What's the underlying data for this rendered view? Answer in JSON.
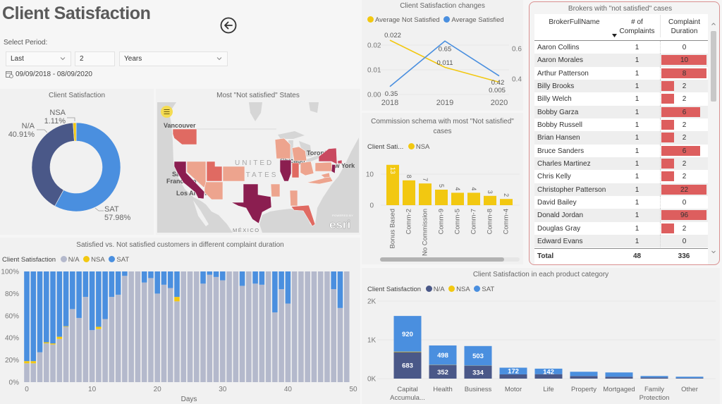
{
  "header": {
    "title": "Client Satisfaction"
  },
  "period": {
    "label": "Select Period:",
    "relative": "Last",
    "count": "2",
    "unit": "Years",
    "date_range": "09/09/2018 - 08/09/2020"
  },
  "colors": {
    "sat": "#4a8fdf",
    "na": "#4a5888",
    "na_light": "#b4b9cc",
    "nsa": "#f2c811",
    "table_bar": "#dd5e5e",
    "map_levels": {
      "high": "#8b1e50",
      "medium_high": "#c94a60",
      "medium": "#e06a62",
      "low": "#eda48e"
    }
  },
  "map": {
    "title": "Most \"Not satisfied\" States",
    "places": {
      "vancouver": "Vancouver",
      "united": "UNITED",
      "states": "STATES",
      "toronto": "Toronto",
      "chicago": "Chicago",
      "new_york": "New York",
      "san": "San",
      "francisco": "Francisco",
      "los_angeles": "Los Angeles",
      "mexico": "MÉXICO"
    },
    "states": [
      {
        "name": "California",
        "level": "high"
      },
      {
        "name": "Texas",
        "level": "high"
      },
      {
        "name": "Illinois",
        "level": "high"
      },
      {
        "name": "New Jersey",
        "level": "high"
      },
      {
        "name": "New York",
        "level": "medium_high"
      },
      {
        "name": "Connecticut",
        "level": "medium_high"
      },
      {
        "name": "Washington",
        "level": "medium"
      },
      {
        "name": "Utah",
        "level": "medium"
      },
      {
        "name": "Indiana",
        "level": "medium"
      },
      {
        "name": "Florida",
        "level": "medium"
      },
      {
        "name": "Nevada",
        "level": "low"
      },
      {
        "name": "Colorado",
        "level": "low"
      },
      {
        "name": "Arizona",
        "level": "low"
      },
      {
        "name": "Arkansas",
        "level": "low"
      },
      {
        "name": "Alabama",
        "level": "low"
      },
      {
        "name": "Wisconsin",
        "level": "low"
      },
      {
        "name": "Michigan",
        "level": "low"
      },
      {
        "name": "Ohio",
        "level": "low"
      },
      {
        "name": "Pennsylvania",
        "level": "low"
      },
      {
        "name": "Virginia",
        "level": "low"
      },
      {
        "name": "Maryland",
        "level": "low"
      }
    ],
    "attribution_small": "POWERED BY",
    "attribution": "esri"
  },
  "table": {
    "title": "Brokers with \"not satisfied\" cases",
    "columns": [
      {
        "lines": [
          "BrokerFullName"
        ]
      },
      {
        "lines": [
          "# of",
          "Complaints"
        ],
        "sort": "descending"
      },
      {
        "lines": [
          "Complaint",
          "Duration"
        ]
      }
    ],
    "rows": [
      {
        "name": "Aaron Collins",
        "complaints": 1,
        "duration": 0
      },
      {
        "name": "Aaron Morales",
        "complaints": 1,
        "duration": 10
      },
      {
        "name": "Arthur Patterson",
        "complaints": 1,
        "duration": 8
      },
      {
        "name": "Billy Brooks",
        "complaints": 1,
        "duration": 2
      },
      {
        "name": "Billy Welch",
        "complaints": 1,
        "duration": 2
      },
      {
        "name": "Bobby Garza",
        "complaints": 1,
        "duration": 6
      },
      {
        "name": "Bobby Russell",
        "complaints": 1,
        "duration": 2
      },
      {
        "name": "Brian Hansen",
        "complaints": 1,
        "duration": 2
      },
      {
        "name": "Bruce Sanders",
        "complaints": 1,
        "duration": 6
      },
      {
        "name": "Charles Martinez",
        "complaints": 1,
        "duration": 2
      },
      {
        "name": "Chris Kelly",
        "complaints": 1,
        "duration": 2
      },
      {
        "name": "Christopher Patterson",
        "complaints": 1,
        "duration": 22
      },
      {
        "name": "David Bailey",
        "complaints": 1,
        "duration": 0
      },
      {
        "name": "Donald Jordan",
        "complaints": 1,
        "duration": 96
      },
      {
        "name": "Douglas Gray",
        "complaints": 1,
        "duration": 2
      },
      {
        "name": "Edward Evans",
        "complaints": 1,
        "duration": 0
      }
    ],
    "total": {
      "label": "Total",
      "complaints": "48",
      "duration": "336"
    }
  },
  "chart_data": [
    {
      "id": "client_satisfaction_donut",
      "type": "pie",
      "title": "Client Satisfaction",
      "slices": [
        {
          "label": "SAT",
          "value": 57.98,
          "display": "57.98%"
        },
        {
          "label": "N/A",
          "value": 40.91,
          "display": "40.91%"
        },
        {
          "label": "NSA",
          "value": 1.11,
          "display": "1.11%"
        }
      ]
    },
    {
      "id": "client_satisfaction_changes",
      "type": "line",
      "title": "Client Satisfaction changes",
      "x": [
        "2018",
        "2019",
        "2020"
      ],
      "series": [
        {
          "name": "Average Not Satisfied",
          "axis": "left",
          "values": [
            0.022,
            0.011,
            0.005
          ],
          "labels": [
            "0.022",
            "0.011",
            "0.005"
          ]
        },
        {
          "name": "Average Satisfied",
          "axis": "right",
          "values": [
            0.35,
            0.65,
            0.42
          ],
          "labels": [
            "0.35",
            "0.65",
            "0.42"
          ]
        }
      ],
      "y_left": {
        "ticks": [
          {
            "value": 0,
            "label": "0.00"
          },
          {
            "value": 0.01,
            "label": "0.01"
          },
          {
            "value": 0.02,
            "label": "0.02"
          }
        ]
      },
      "y_right": {
        "ticks": [
          {
            "value": 0.4,
            "label": "0.4"
          },
          {
            "value": 0.6,
            "label": "0.6"
          }
        ]
      },
      "grid": true,
      "legend": "top-left"
    },
    {
      "id": "commission_schema",
      "type": "bar",
      "title": "Commission schema with most \"Not satisfied\" cases",
      "legend_title": "Client Sati...",
      "series_name": "NSA",
      "categories": [
        "Bonus Based",
        "Comm-2",
        "No Commission",
        "Comm-9",
        "Comm-5",
        "Comm-7",
        "Comm-8",
        "Comm-4"
      ],
      "values": [
        13,
        8,
        7,
        5,
        4,
        4,
        3,
        2
      ],
      "yticks": [
        {
          "value": 0,
          "label": "0"
        },
        {
          "value": 10,
          "label": "10"
        }
      ],
      "ylim": [
        0,
        15
      ]
    },
    {
      "id": "complaint_duration",
      "type": "bar",
      "stacked": "percent",
      "title": "Satisfied vs. Not satisfied customers in different complaint duration",
      "legend_title": "Client Satisfaction",
      "xlabel": "Days",
      "ylabel": "",
      "x": [
        0,
        1,
        2,
        3,
        4,
        5,
        6,
        7,
        8,
        9,
        10,
        11,
        12,
        13,
        14,
        15,
        16,
        17,
        18,
        19,
        20,
        21,
        22,
        23,
        24,
        25,
        26,
        27,
        28,
        29,
        30,
        31,
        32,
        33,
        34,
        35,
        36,
        37,
        38,
        39,
        40,
        41,
        42,
        43,
        44,
        45,
        46,
        47,
        48,
        49
      ],
      "series": [
        {
          "name": "N/A",
          "values": [
            17,
            17,
            27,
            35,
            34,
            39,
            50,
            66,
            58,
            77,
            47,
            48,
            57,
            77,
            79,
            96,
            100,
            100,
            90,
            94,
            80,
            88,
            85,
            73,
            100,
            100,
            100,
            89,
            97,
            95,
            92,
            100,
            100,
            87,
            100,
            89,
            88,
            100,
            63,
            84,
            71,
            100,
            100,
            100,
            100,
            100,
            100,
            84,
            67,
            100
          ]
        },
        {
          "name": "NSA",
          "values": [
            2,
            2,
            0,
            1,
            1,
            2,
            0.5,
            0,
            0,
            0,
            0,
            2,
            0,
            0,
            0,
            0,
            0,
            0,
            0,
            0,
            0,
            0,
            0,
            4,
            0,
            0,
            0,
            0,
            0,
            0,
            0,
            0,
            0,
            0,
            0,
            0,
            0,
            0,
            0,
            0,
            0,
            0,
            0,
            0,
            0,
            0,
            0,
            0,
            0,
            0
          ]
        },
        {
          "name": "SAT",
          "values": [
            81,
            81,
            73,
            64,
            65,
            59,
            49.5,
            34,
            42,
            23,
            53,
            50,
            43,
            23,
            21,
            4,
            0,
            0,
            10,
            6,
            20,
            12,
            15,
            23,
            0,
            0,
            0,
            11,
            3,
            5,
            8,
            0,
            0,
            13,
            0,
            11,
            12,
            0,
            37,
            16,
            29,
            0,
            0,
            0,
            0,
            0,
            0,
            16,
            33,
            0
          ]
        }
      ],
      "yticks": [
        {
          "value": 0,
          "label": "0%"
        },
        {
          "value": 20,
          "label": "20%"
        },
        {
          "value": 40,
          "label": "40%"
        },
        {
          "value": 60,
          "label": "60%"
        },
        {
          "value": 80,
          "label": "80%"
        },
        {
          "value": 100,
          "label": "100%"
        }
      ],
      "xticks": [
        {
          "value": 0,
          "label": "0"
        },
        {
          "value": 10,
          "label": "10"
        },
        {
          "value": 20,
          "label": "20"
        },
        {
          "value": 30,
          "label": "30"
        },
        {
          "value": 40,
          "label": "40"
        },
        {
          "value": 50,
          "label": "50"
        }
      ],
      "ylim": [
        0,
        100
      ]
    },
    {
      "id": "product_category",
      "type": "bar",
      "stacked": true,
      "title": "Client Satisfaction in each product category",
      "legend_title": "Client Satisfaction",
      "categories": [
        "Capital Accumula...",
        "Health",
        "Business",
        "Motor",
        "Life",
        "Property",
        "Mortgaged",
        "Family Protection",
        "Other"
      ],
      "series": [
        {
          "name": "N/A",
          "values": [
            683,
            352,
            334,
            110,
            115,
            67,
            49,
            30,
            15
          ],
          "labels": [
            "683",
            "352",
            "334",
            "",
            "",
            "",
            "",
            "",
            ""
          ]
        },
        {
          "name": "NSA",
          "values": [
            13,
            5,
            3,
            0,
            0,
            0,
            0,
            0,
            0
          ],
          "labels": [
            "",
            "",
            "",
            "",
            "",
            "",
            "",
            "",
            ""
          ]
        },
        {
          "name": "SAT",
          "values": [
            920,
            498,
            503,
            172,
            142,
            110,
            110,
            37,
            34
          ],
          "labels": [
            "920",
            "498",
            "503",
            "172",
            "142",
            "",
            "",
            "",
            ""
          ]
        }
      ],
      "yticks": [
        {
          "value": 0,
          "label": "0K"
        },
        {
          "value": 1000,
          "label": "1K"
        },
        {
          "value": 2000,
          "label": "2K"
        }
      ],
      "ylim": [
        0,
        2000
      ]
    }
  ]
}
